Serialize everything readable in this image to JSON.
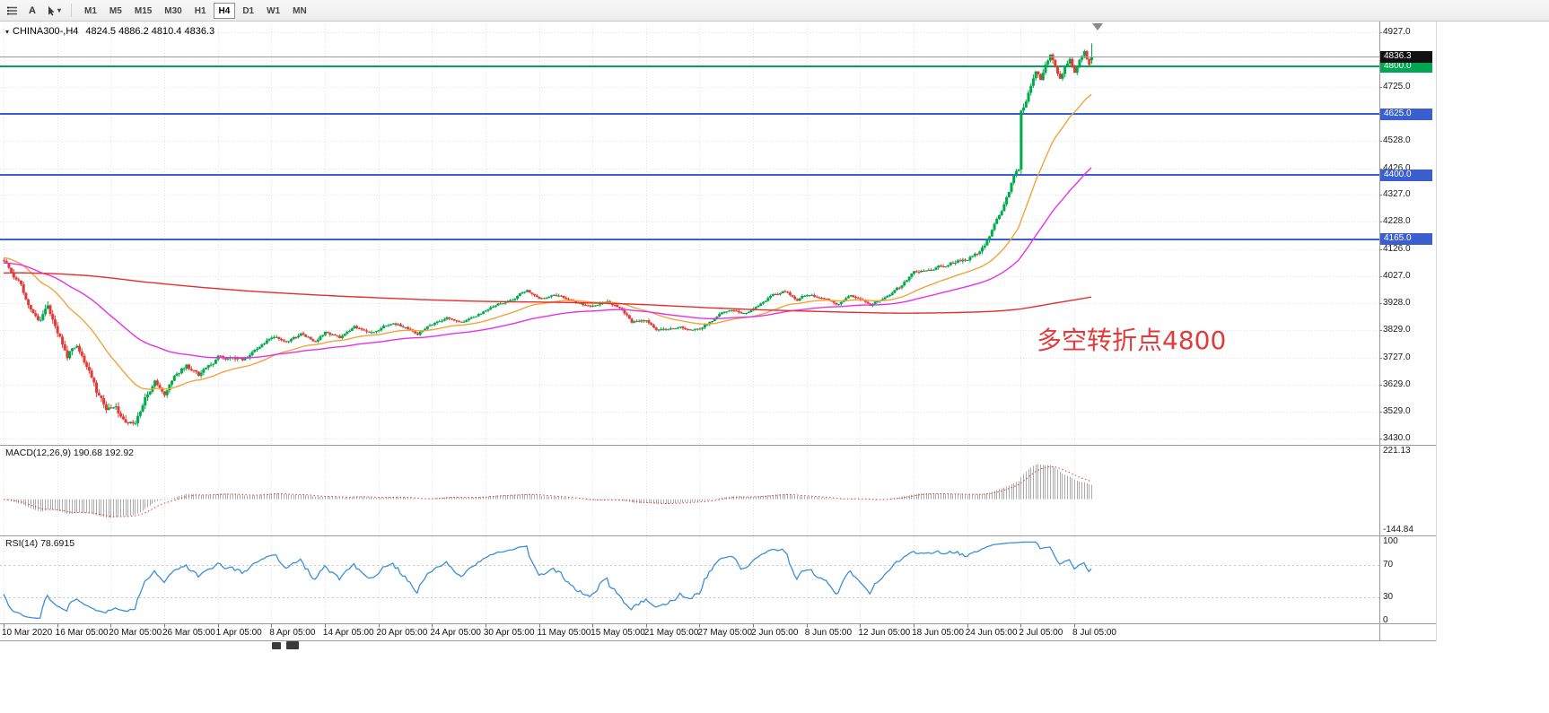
{
  "toolbar": {
    "text_tool_label": "A",
    "timeframes": [
      "M1",
      "M5",
      "M15",
      "M30",
      "H1",
      "H4",
      "D1",
      "W1",
      "MN"
    ],
    "active_timeframe": "H4"
  },
  "chart": {
    "symbol_title": "CHINA300-,H4",
    "ohlc": "4824.5 4886.2 4810.4 4836.3",
    "annotation": {
      "text": "多空转折点4800",
      "color": "#e23b3b"
    },
    "current_price": {
      "value": 4836.3,
      "label": "4836.3",
      "line_color": "#9b9b9b",
      "badge_color": "#111111"
    },
    "hlines": [
      {
        "price": 4800,
        "label": "4800.0",
        "color": "#00a651"
      },
      {
        "price": 4625,
        "label": "4625.0",
        "color": "#3b5fce"
      },
      {
        "price": 4400,
        "label": "4400.0",
        "color": "#3b5fce"
      },
      {
        "price": 4165,
        "label": "4165.0",
        "color": "#3b5fce"
      }
    ],
    "price_axis": {
      "labels": [
        "4927.0",
        "4826.0",
        "4725.0",
        "4625.0",
        "4528.0",
        "4426.0",
        "4327.0",
        "4228.0",
        "4126.0",
        "4027.0",
        "3928.0",
        "3829.0",
        "3727.0",
        "3629.0",
        "3529.0",
        "3430.0"
      ]
    },
    "dates": [
      "10 Mar 2020",
      "16 Mar 05:00",
      "20 Mar 05:00",
      "26 Mar 05:00",
      "1 Apr 05:00",
      "8 Apr 05:00",
      "14 Apr 05:00",
      "20 Apr 05:00",
      "24 Apr 05:00",
      "30 Apr 05:00",
      "11 May 05:00",
      "15 May 05:00",
      "21 May 05:00",
      "27 May 05:00",
      "2 Jun 05:00",
      "8 Jun 05:00",
      "12 Jun 05:00",
      "18 Jun 05:00",
      "24 Jun 05:00",
      "2 Jul 05:00",
      "8 Jul 05:00"
    ]
  },
  "indicators": {
    "macd": {
      "title": "MACD(12,26,9) 190.68 192.92",
      "axis_max": "221.13",
      "axis_min": "-144.84",
      "histogram_color": "#ababab",
      "signal_color": "#e53935"
    },
    "rsi": {
      "title": "RSI(14) 78.6915",
      "period": 14,
      "line_color": "#3a8fd9",
      "axis_labels": [
        "100",
        "70",
        "30",
        "0"
      ],
      "levels": [
        70,
        30
      ],
      "level_color": "#c4c4c4"
    }
  },
  "chart_data": {
    "type": "candlestick",
    "symbol": "CHINA300-",
    "timeframe": "H4",
    "visible_bars": 448,
    "pre_bars": 520,
    "seed": 11,
    "tick_every": 22,
    "bull_color": "#00a94a",
    "bear_color": "#e53935",
    "grid_color": "#e3e3e3",
    "last_candle": {
      "open": 4824.5,
      "high": 4886.2,
      "low": 4810.4,
      "close": 4836.3
    },
    "price_anchors": [
      [
        -520,
        3960
      ],
      [
        -420,
        4080
      ],
      [
        -300,
        3990
      ],
      [
        -180,
        4090
      ],
      [
        -90,
        3960
      ],
      [
        -40,
        4120
      ],
      [
        0,
        4080
      ],
      [
        6,
        4010
      ],
      [
        10,
        3920
      ],
      [
        14,
        3870
      ],
      [
        18,
        3910
      ],
      [
        22,
        3830
      ],
      [
        26,
        3740
      ],
      [
        30,
        3790
      ],
      [
        34,
        3680
      ],
      [
        38,
        3590
      ],
      [
        42,
        3530
      ],
      [
        46,
        3560
      ],
      [
        50,
        3490
      ],
      [
        54,
        3470
      ],
      [
        58,
        3560
      ],
      [
        62,
        3620
      ],
      [
        66,
        3590
      ],
      [
        70,
        3660
      ],
      [
        75,
        3700
      ],
      [
        80,
        3660
      ],
      [
        88,
        3730
      ],
      [
        98,
        3720
      ],
      [
        104,
        3760
      ],
      [
        110,
        3800
      ],
      [
        116,
        3780
      ],
      [
        122,
        3810
      ],
      [
        128,
        3790
      ],
      [
        132,
        3825
      ],
      [
        138,
        3805
      ],
      [
        144,
        3840
      ],
      [
        150,
        3820
      ],
      [
        154,
        3835
      ],
      [
        160,
        3860
      ],
      [
        166,
        3840
      ],
      [
        170,
        3815
      ],
      [
        176,
        3850
      ],
      [
        182,
        3870
      ],
      [
        188,
        3860
      ],
      [
        194,
        3885
      ],
      [
        198,
        3905
      ],
      [
        204,
        3930
      ],
      [
        210,
        3950
      ],
      [
        215,
        3975
      ],
      [
        220,
        3940
      ],
      [
        226,
        3960
      ],
      [
        232,
        3945
      ],
      [
        238,
        3930
      ],
      [
        242,
        3925
      ],
      [
        248,
        3945
      ],
      [
        254,
        3905
      ],
      [
        258,
        3860
      ],
      [
        264,
        3860
      ],
      [
        268,
        3820
      ],
      [
        272,
        3815
      ],
      [
        278,
        3840
      ],
      [
        286,
        3830
      ],
      [
        292,
        3870
      ],
      [
        298,
        3905
      ],
      [
        304,
        3890
      ],
      [
        308,
        3905
      ],
      [
        314,
        3950
      ],
      [
        320,
        3970
      ],
      [
        326,
        3940
      ],
      [
        330,
        3960
      ],
      [
        336,
        3945
      ],
      [
        342,
        3930
      ],
      [
        348,
        3950
      ],
      [
        352,
        3945
      ],
      [
        356,
        3925
      ],
      [
        362,
        3955
      ],
      [
        368,
        3985
      ],
      [
        374,
        4040
      ],
      [
        380,
        4060
      ],
      [
        386,
        4075
      ],
      [
        392,
        4090
      ],
      [
        396,
        4100
      ],
      [
        400,
        4120
      ],
      [
        404,
        4170
      ],
      [
        407,
        4220
      ],
      [
        410,
        4280
      ],
      [
        412,
        4330
      ],
      [
        414,
        4380
      ],
      [
        416,
        4420
      ],
      [
        417,
        4430
      ],
      [
        418,
        4650
      ],
      [
        419,
        4670
      ],
      [
        420,
        4690
      ],
      [
        422,
        4750
      ],
      [
        424,
        4800
      ],
      [
        426,
        4770
      ],
      [
        428,
        4815
      ],
      [
        430,
        4845
      ],
      [
        432,
        4795
      ],
      [
        434,
        4755
      ],
      [
        436,
        4800
      ],
      [
        438,
        4835
      ],
      [
        440,
        4795
      ],
      [
        442,
        4835
      ],
      [
        444,
        4872
      ],
      [
        446,
        4820
      ],
      [
        447,
        4836.3
      ]
    ],
    "vol_anchors": [
      [
        -520,
        12
      ],
      [
        -40,
        14
      ],
      [
        0,
        18
      ],
      [
        10,
        26
      ],
      [
        30,
        32
      ],
      [
        55,
        30
      ],
      [
        70,
        22
      ],
      [
        100,
        16
      ],
      [
        140,
        13
      ],
      [
        200,
        12
      ],
      [
        260,
        14
      ],
      [
        300,
        12
      ],
      [
        350,
        12
      ],
      [
        380,
        14
      ],
      [
        400,
        18
      ],
      [
        416,
        22
      ],
      [
        418,
        30
      ],
      [
        425,
        26
      ],
      [
        440,
        22
      ],
      [
        447,
        16
      ]
    ],
    "moving_averages": [
      {
        "name": "fast",
        "type": "ema",
        "period": 34,
        "color": "#f2a33c"
      },
      {
        "name": "medium",
        "type": "ema",
        "period": 90,
        "color": "#e632e6"
      },
      {
        "name": "slow",
        "type": "sma",
        "period": 500,
        "color": "#e62e2e"
      }
    ],
    "macd_range": {
      "max": 221.13,
      "min": -144.84
    }
  }
}
